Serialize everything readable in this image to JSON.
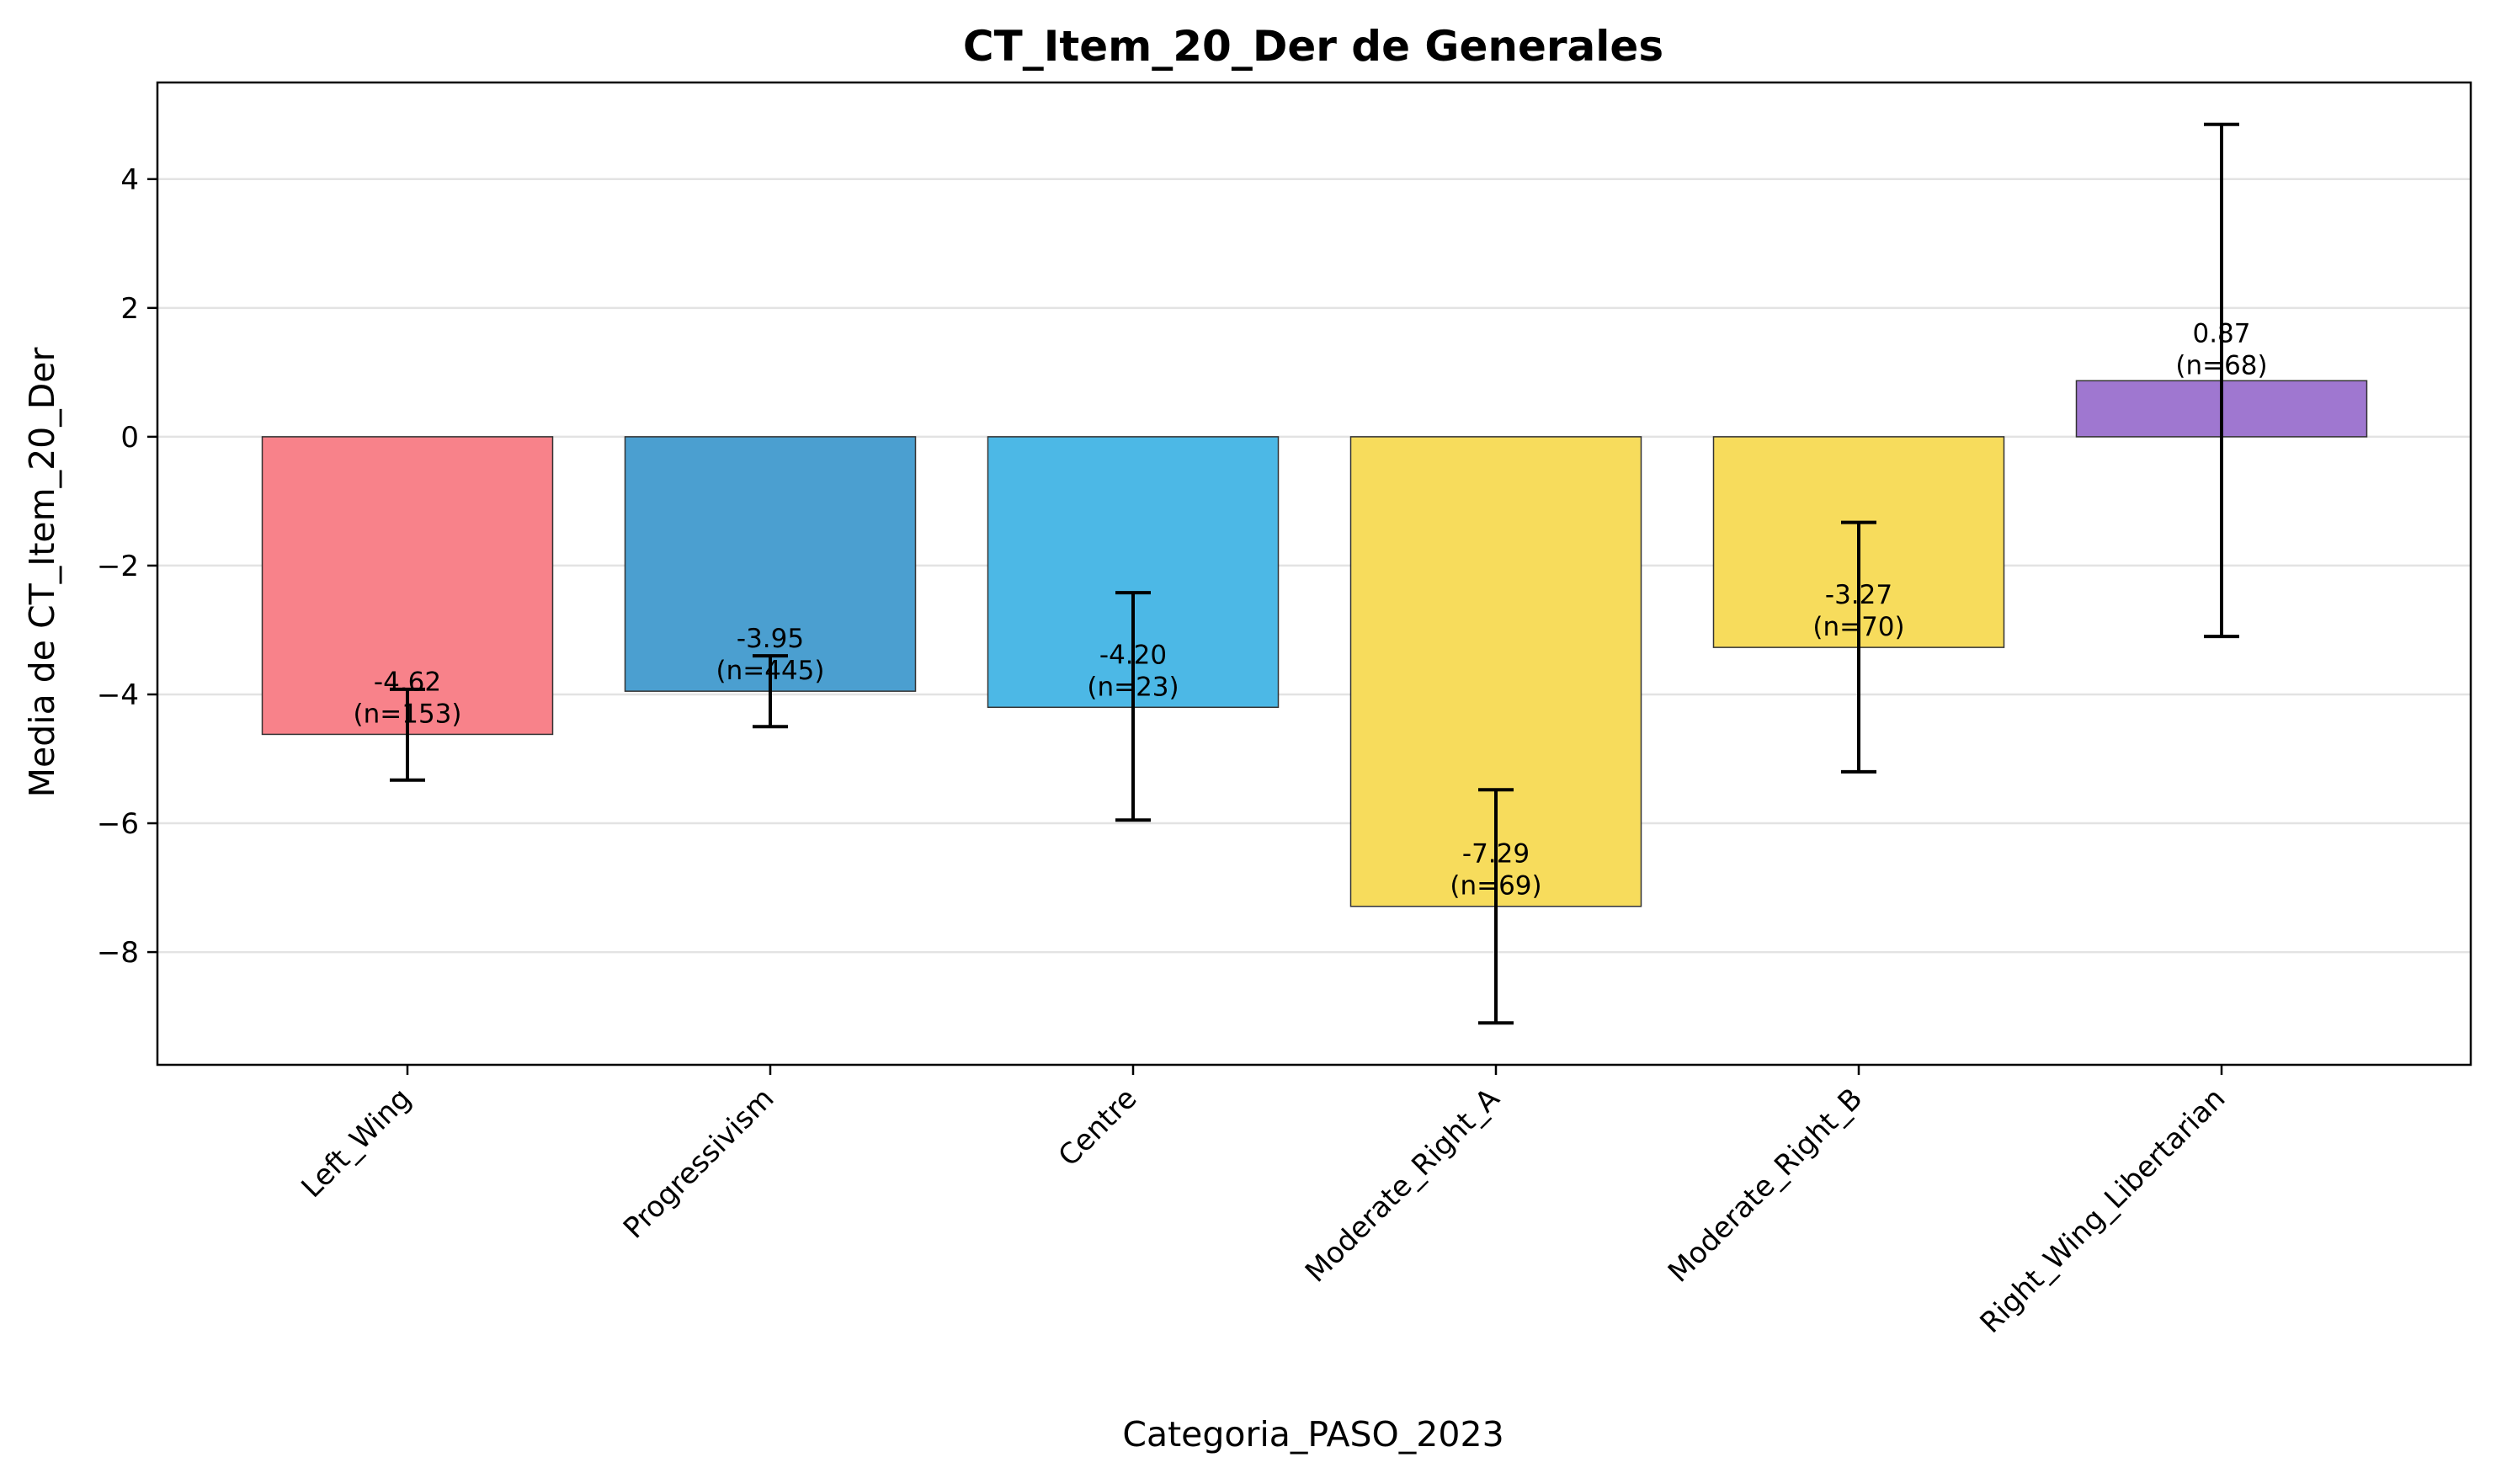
{
  "chart_data": {
    "type": "bar",
    "title": "CT_Item_20_Der de Generales",
    "xlabel": "Categoria_PASO_2023",
    "ylabel": "Media de CT_Item_20_Der",
    "categories": [
      "Left_Wing",
      "Progressivism",
      "Centre",
      "Moderate_Right_A",
      "Moderate_Right_B",
      "Right_Wing_Libertarian"
    ],
    "values": [
      -4.62,
      -3.95,
      -4.2,
      -7.29,
      -3.27,
      0.87
    ],
    "error_low": [
      -5.33,
      -4.5,
      -5.95,
      -9.1,
      -5.2,
      -3.1
    ],
    "error_high": [
      -3.92,
      -3.4,
      -2.42,
      -5.48,
      -1.33,
      4.85
    ],
    "value_labels": [
      "-4.62",
      "-3.95",
      "-4.20",
      "-7.29",
      "-3.27",
      "0.87"
    ],
    "n_labels": [
      "(n=153)",
      "(n=445)",
      "(n=23)",
      "(n=69)",
      "(n=70)",
      "(n=68)"
    ],
    "colors": [
      "#f8828a",
      "#4b9fd0",
      "#4cb8e6",
      "#f7dc5c",
      "#f7dc5c",
      "#9f77d0"
    ],
    "ylim": [
      -9.75,
      5.5
    ],
    "yticks": [
      -8,
      -6,
      -4,
      -2,
      0,
      2,
      4
    ],
    "ytick_labels": [
      "−8",
      "−6",
      "−4",
      "−2",
      "0",
      "2",
      "4"
    ],
    "grid": "horizontal"
  }
}
